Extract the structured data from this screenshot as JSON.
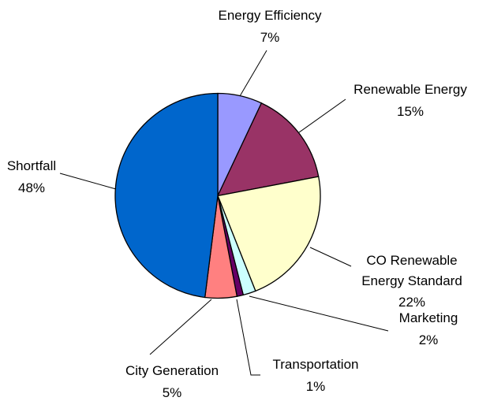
{
  "chart_data": {
    "type": "pie",
    "categories": [
      "Energy Efficiency",
      "Renewable Energy",
      "CO Renewable Energy Standard",
      "Marketing",
      "Transportation",
      "City Generation",
      "Shortfall"
    ],
    "values": [
      7,
      15,
      22,
      2,
      1,
      5,
      48
    ],
    "value_labels": [
      "7%",
      "15%",
      "22%",
      "2%",
      "1%",
      "5%",
      "48%"
    ],
    "colors": [
      "#9999ff",
      "#993366",
      "#ffffcc",
      "#ccffff",
      "#660066",
      "#ff8080",
      "#0066cc"
    ]
  }
}
